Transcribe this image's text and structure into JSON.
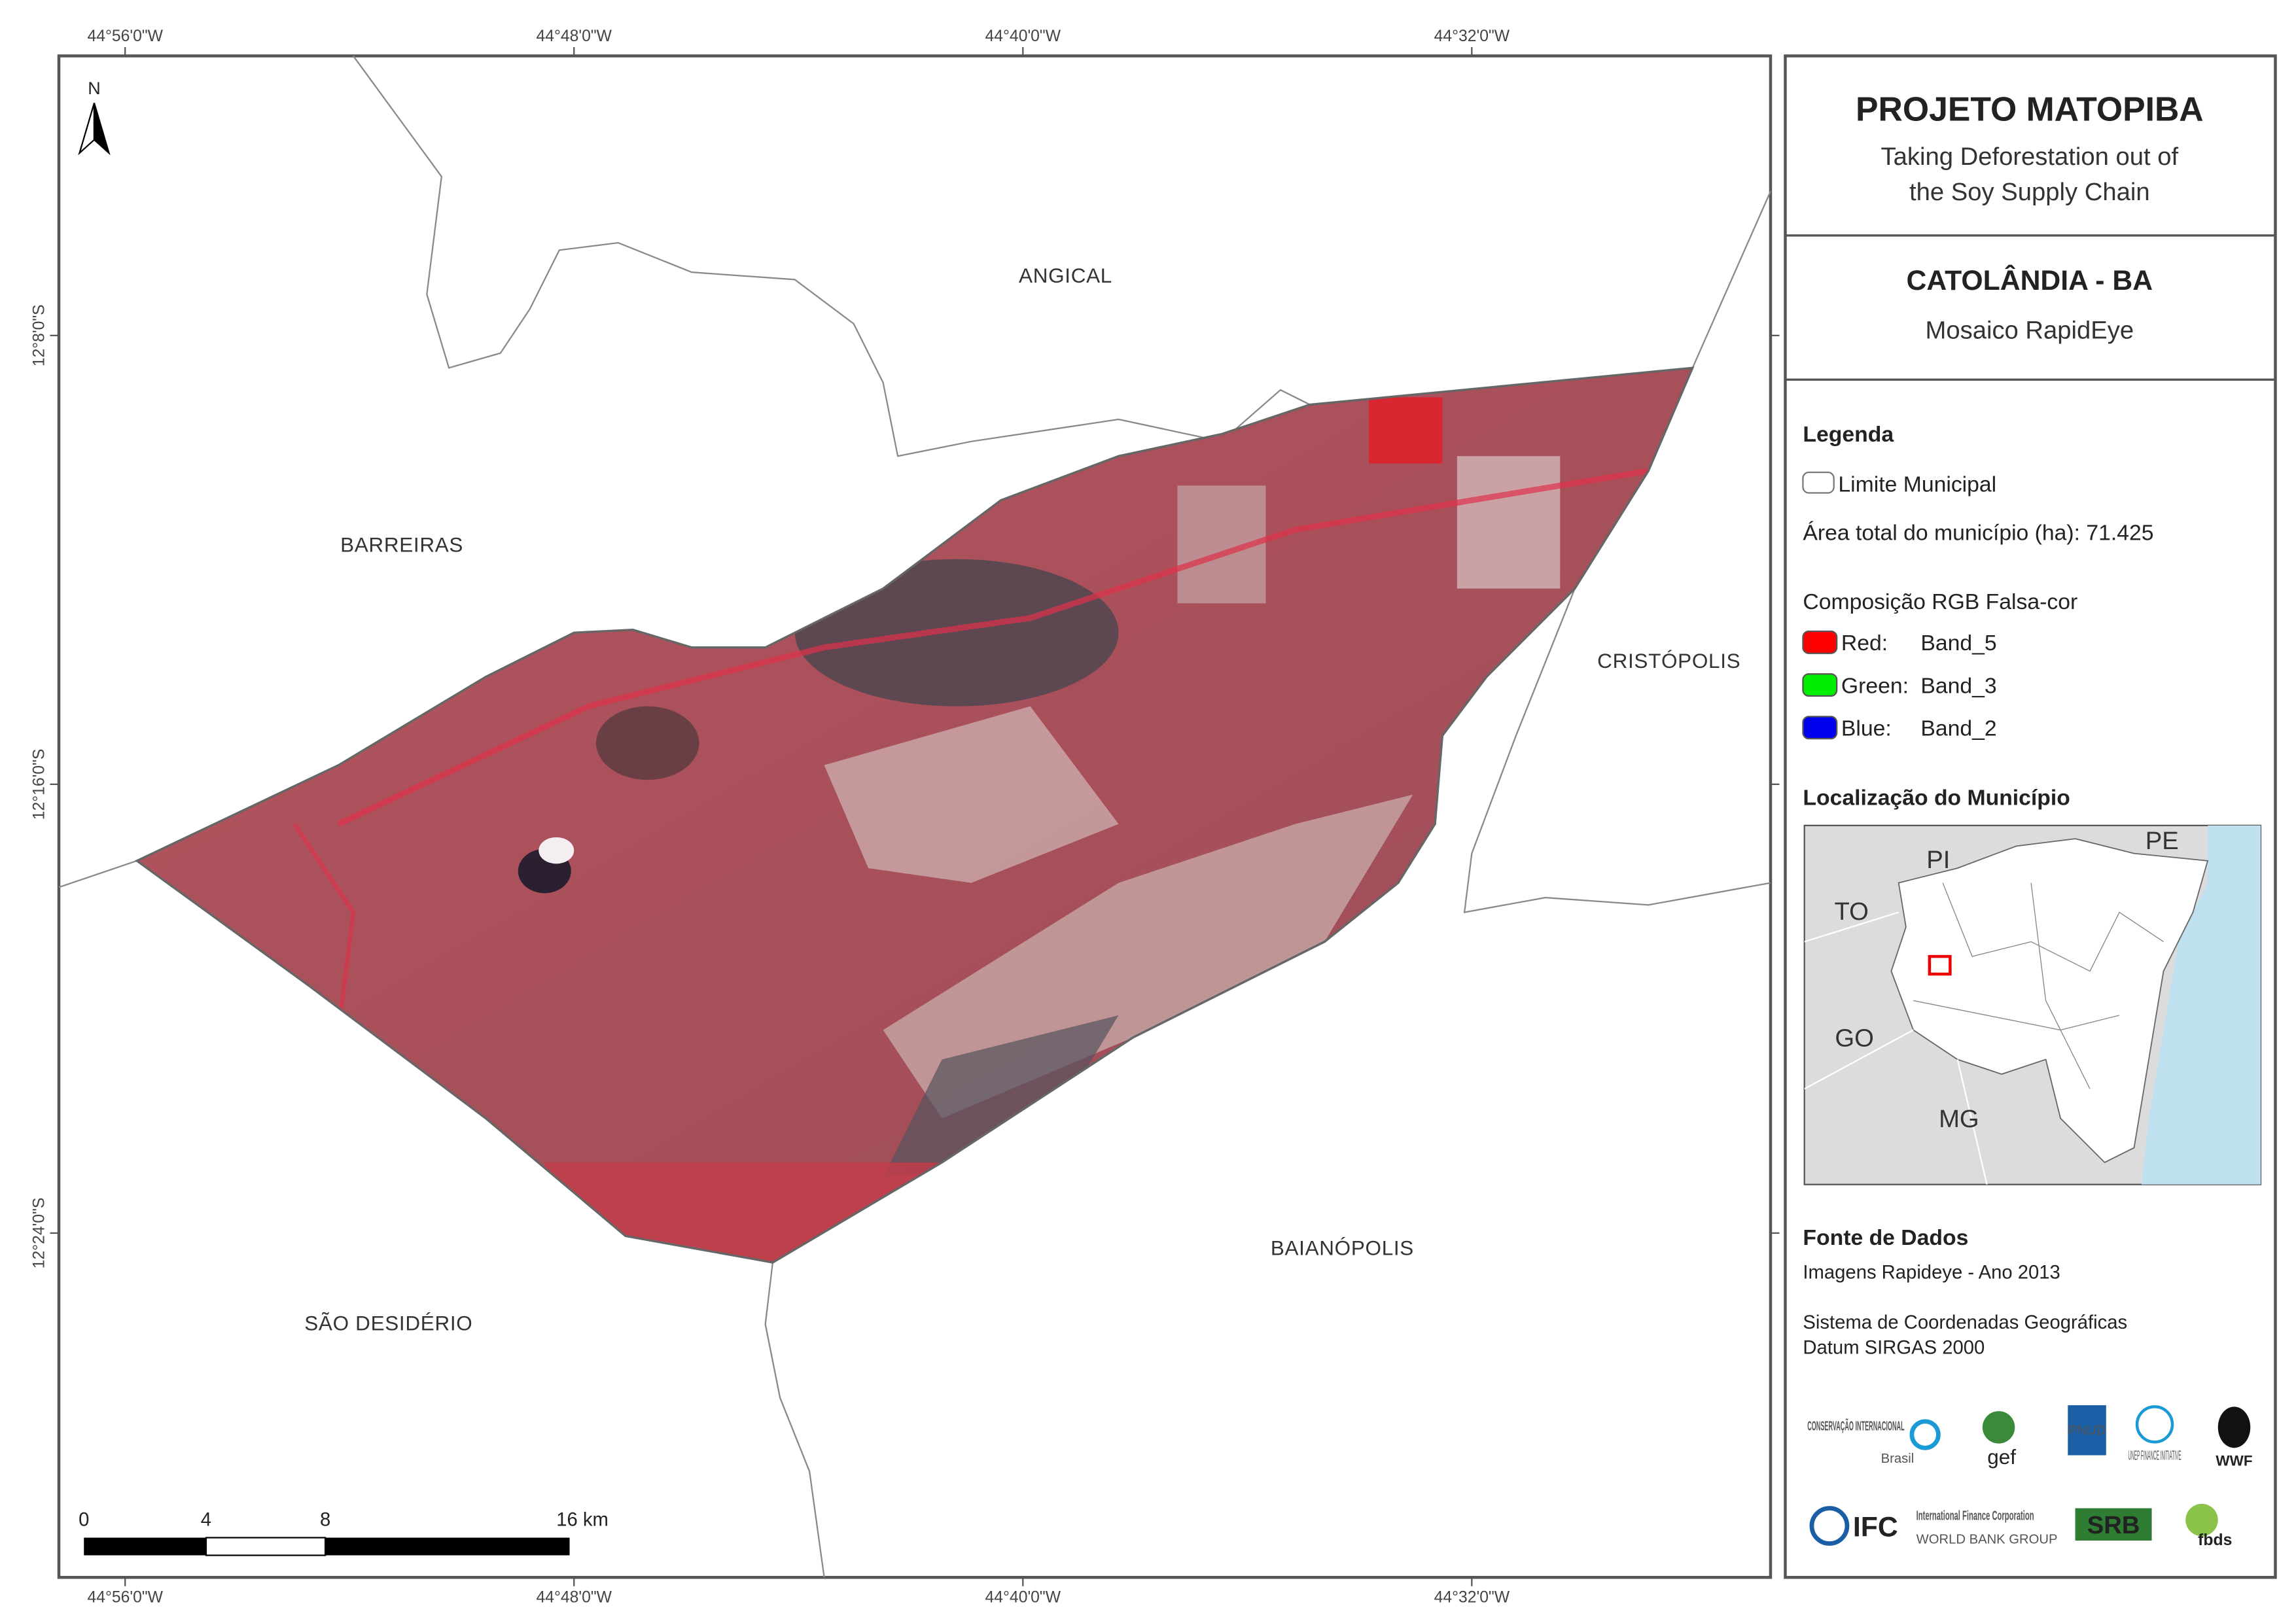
{
  "map": {
    "coordinates": {
      "top": [
        "44°56'0\"W",
        "44°48'0\"W",
        "44°40'0\"W",
        "44°32'0\"W"
      ],
      "bottom": [
        "44°56'0\"W",
        "44°48'0\"W",
        "44°40'0\"W",
        "44°32'0\"W"
      ],
      "left": [
        "12°8'0\"S",
        "12°16'0\"S",
        "12°24'0\"S"
      ]
    },
    "north": "N",
    "places": [
      "ANGICAL",
      "BARREIRAS",
      "CRISTÓPOLIS",
      "BAIANÓPOLIS",
      "SÃO DESIDÉRIO"
    ],
    "scale_bar": [
      "0",
      "4",
      "8",
      "16 km"
    ]
  },
  "panel": {
    "title": "PROJETO MATOPIBA",
    "subtitle": [
      "Taking Deforestation out of",
      "the Soy Supply Chain"
    ],
    "municipality": "CATOLÂNDIA - BA",
    "mosaic": "Mosaico RapidEye",
    "legend": {
      "heading": "Legenda",
      "boundary": "Limite Municipal",
      "area": "Área total do município (ha): 71.425",
      "composition": "Composição RGB Falsa-cor",
      "bands": [
        {
          "channel": "Red:",
          "band": "Band_5",
          "color": "#ff0000"
        },
        {
          "channel": "Green:",
          "band": "Band_3",
          "color": "#00ee00"
        },
        {
          "channel": "Blue:",
          "band": "Band_2",
          "color": "#0000ee"
        }
      ]
    },
    "location": {
      "heading": "Localização do Município",
      "states": [
        "PI",
        "PE",
        "TO",
        "GO",
        "MG"
      ]
    },
    "sources": {
      "heading": "Fonte de Dados",
      "lines": [
        "Imagens Rapideye - Ano 2013",
        "Sistema de Coordenadas Geográficas",
        "Datum SIRGAS 2000"
      ]
    },
    "logos": [
      "CONSERVAÇÃO INTERNACIONAL",
      "Brasil",
      "gef",
      "PNUD",
      "UNEP FINANCE INITIATIVE",
      "WWF",
      "IFC",
      "International Finance Corporation",
      "WORLD BANK GROUP",
      "SRB",
      "fbds"
    ]
  }
}
